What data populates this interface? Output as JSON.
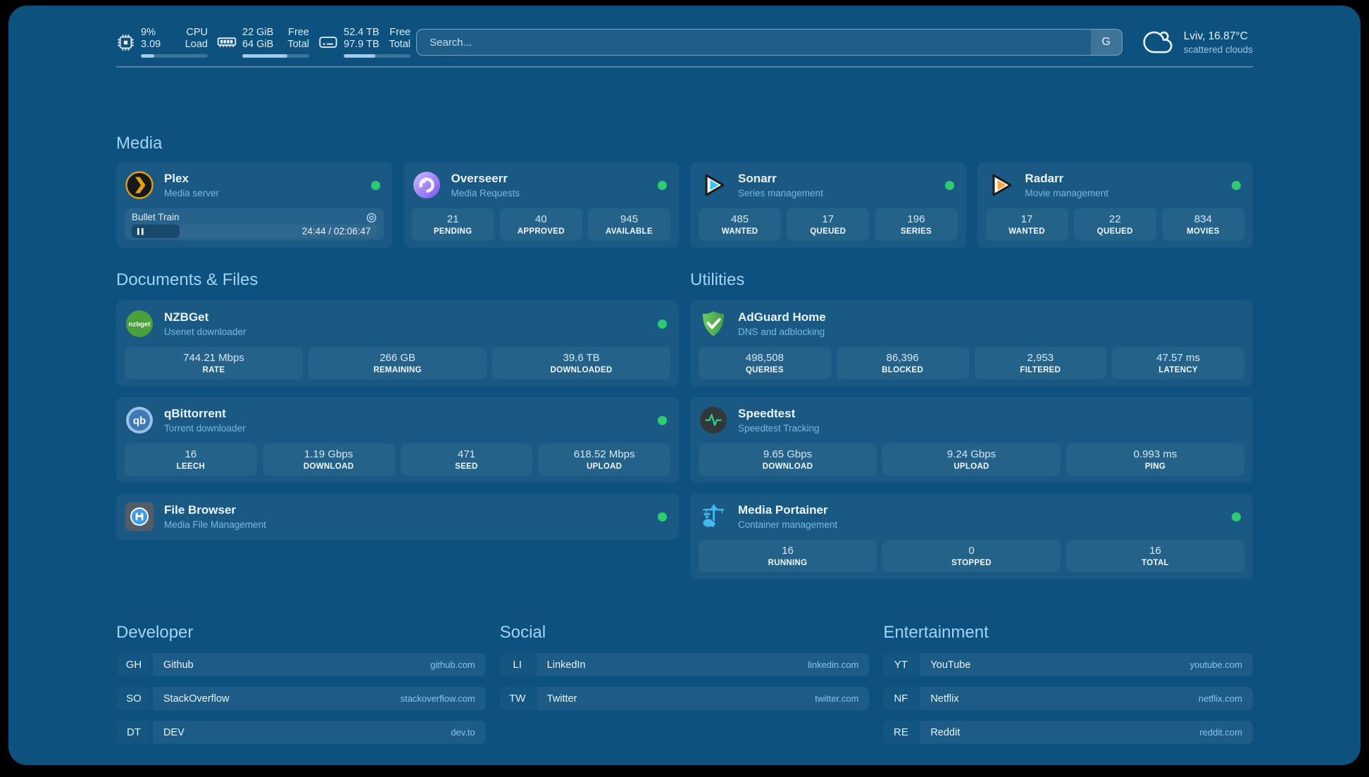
{
  "topbar": {
    "resources": [
      {
        "icon": "cpu-icon",
        "col1": [
          "9%",
          "3.09"
        ],
        "col2": [
          "CPU",
          "Load"
        ],
        "progress": 20
      },
      {
        "icon": "memory-icon",
        "col1": [
          "22 GiB",
          "64 GiB"
        ],
        "col2": [
          "Free",
          "Total"
        ],
        "progress": 67
      },
      {
        "icon": "disk-icon",
        "col1": [
          "52.4 TB",
          "97.9 TB"
        ],
        "col2": [
          "Free",
          "Total"
        ],
        "progress": 47
      }
    ],
    "search": {
      "placeholder": "Search...",
      "button_label": "G"
    },
    "weather": {
      "location": "Lviv, 16.87°C",
      "condition": "scattered clouds"
    }
  },
  "media": {
    "title": "Media",
    "plex": {
      "name": "Plex",
      "subtitle": "Media server",
      "now_playing": "Bullet Train",
      "time": "24:44 / 02:06:47",
      "progress_percent": 19.5
    },
    "overseerr": {
      "name": "Overseerr",
      "subtitle": "Media Requests",
      "stats": [
        {
          "value": "21",
          "label": "PENDING"
        },
        {
          "value": "40",
          "label": "APPROVED"
        },
        {
          "value": "945",
          "label": "AVAILABLE"
        }
      ]
    },
    "sonarr": {
      "name": "Sonarr",
      "subtitle": "Series management",
      "stats": [
        {
          "value": "485",
          "label": "WANTED"
        },
        {
          "value": "17",
          "label": "QUEUED"
        },
        {
          "value": "196",
          "label": "SERIES"
        }
      ]
    },
    "radarr": {
      "name": "Radarr",
      "subtitle": "Movie management",
      "stats": [
        {
          "value": "17",
          "label": "WANTED"
        },
        {
          "value": "22",
          "label": "QUEUED"
        },
        {
          "value": "834",
          "label": "MOVIES"
        }
      ]
    }
  },
  "documents": {
    "title": "Documents & Files",
    "nzbget": {
      "name": "NZBGet",
      "subtitle": "Usenet downloader",
      "icon_text": "nzbget",
      "stats": [
        {
          "value": "744.21 Mbps",
          "label": "RATE"
        },
        {
          "value": "266 GB",
          "label": "REMAINING"
        },
        {
          "value": "39.6 TB",
          "label": "DOWNLOADED"
        }
      ]
    },
    "qbittorrent": {
      "name": "qBittorrent",
      "subtitle": "Torrent downloader",
      "icon_text": "qb",
      "stats": [
        {
          "value": "16",
          "label": "LEECH"
        },
        {
          "value": "1.19 Gbps",
          "label": "DOWNLOAD"
        },
        {
          "value": "471",
          "label": "SEED"
        },
        {
          "value": "618.52 Mbps",
          "label": "UPLOAD"
        }
      ]
    },
    "filebrowser": {
      "name": "File Browser",
      "subtitle": "Media File Management"
    }
  },
  "utilities": {
    "title": "Utilities",
    "adguard": {
      "name": "AdGuard Home",
      "subtitle": "DNS and adblocking",
      "stats": [
        {
          "value": "498,508",
          "label": "QUERIES"
        },
        {
          "value": "86,396",
          "label": "BLOCKED"
        },
        {
          "value": "2,953",
          "label": "FILTERED"
        },
        {
          "value": "47.57 ms",
          "label": "LATENCY"
        }
      ]
    },
    "speedtest": {
      "name": "Speedtest",
      "subtitle": "Speedtest Tracking",
      "stats": [
        {
          "value": "9.65 Gbps",
          "label": "DOWNLOAD"
        },
        {
          "value": "9.24 Gbps",
          "label": "UPLOAD"
        },
        {
          "value": "0.993 ms",
          "label": "PING"
        }
      ]
    },
    "portainer": {
      "name": "Media Portainer",
      "subtitle": "Container management",
      "stats": [
        {
          "value": "16",
          "label": "RUNNING"
        },
        {
          "value": "0",
          "label": "STOPPED"
        },
        {
          "value": "16",
          "label": "TOTAL"
        }
      ]
    }
  },
  "bookmarks": [
    {
      "title": "Developer",
      "items": [
        {
          "abbr": "GH",
          "name": "Github",
          "domain": "github.com"
        },
        {
          "abbr": "SO",
          "name": "StackOverflow",
          "domain": "stackoverflow.com"
        },
        {
          "abbr": "DT",
          "name": "DEV",
          "domain": "dev.to"
        }
      ]
    },
    {
      "title": "Social",
      "items": [
        {
          "abbr": "LI",
          "name": "LinkedIn",
          "domain": "linkedin.com"
        },
        {
          "abbr": "TW",
          "name": "Twitter",
          "domain": "twitter.com"
        }
      ]
    },
    {
      "title": "Entertainment",
      "items": [
        {
          "abbr": "YT",
          "name": "YouTube",
          "domain": "youtube.com"
        },
        {
          "abbr": "NF",
          "name": "Netflix",
          "domain": "netflix.com"
        },
        {
          "abbr": "RE",
          "name": "Reddit",
          "domain": "reddit.com"
        }
      ]
    }
  ],
  "colors": {
    "status_online": "#2ecc71",
    "background": "#0d517e"
  }
}
